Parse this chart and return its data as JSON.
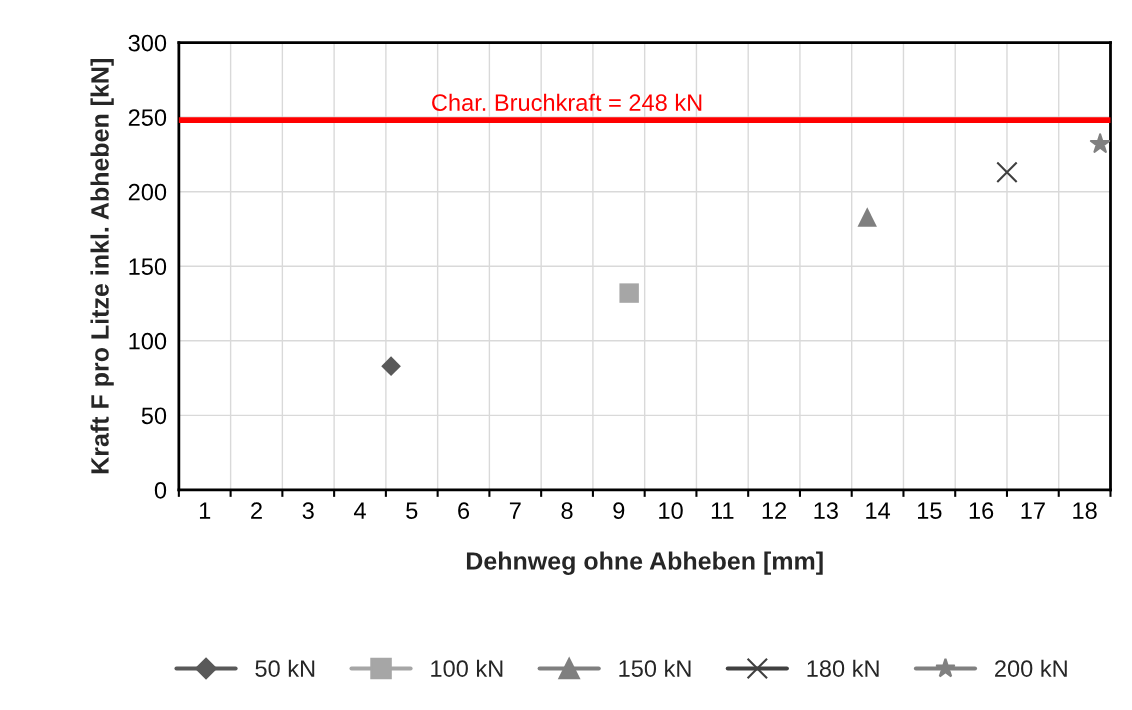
{
  "chart_data": {
    "type": "scatter",
    "xlabel": "Dehnweg ohne Abheben [mm]",
    "ylabel": "Kraft F pro Litze inkl. Abheben [kN]",
    "xlim": [
      0.5,
      18.5
    ],
    "ylim": [
      0,
      300
    ],
    "xticks": [
      {
        "value": 0.5,
        "label": null
      },
      {
        "value": 1,
        "label": "1"
      },
      {
        "value": 1.5,
        "label": null
      },
      {
        "value": 2,
        "label": "2"
      },
      {
        "value": 2.5,
        "label": null
      },
      {
        "value": 3,
        "label": "3"
      },
      {
        "value": 3.5,
        "label": null
      },
      {
        "value": 4,
        "label": "4"
      },
      {
        "value": 4.5,
        "label": null
      },
      {
        "value": 5,
        "label": "5"
      },
      {
        "value": 5.5,
        "label": null
      },
      {
        "value": 6,
        "label": "6"
      },
      {
        "value": 6.5,
        "label": null
      },
      {
        "value": 7,
        "label": "7"
      },
      {
        "value": 7.5,
        "label": null
      },
      {
        "value": 8,
        "label": "8"
      },
      {
        "value": 8.5,
        "label": null
      },
      {
        "value": 9,
        "label": "9"
      },
      {
        "value": 9.5,
        "label": null
      },
      {
        "value": 10,
        "label": "10"
      },
      {
        "value": 10.5,
        "label": null
      },
      {
        "value": 11,
        "label": "11"
      },
      {
        "value": 11.5,
        "label": null
      },
      {
        "value": 12,
        "label": "12"
      },
      {
        "value": 12.5,
        "label": null
      },
      {
        "value": 13,
        "label": "13"
      },
      {
        "value": 13.5,
        "label": null
      },
      {
        "value": 14,
        "label": "14"
      },
      {
        "value": 14.5,
        "label": null
      },
      {
        "value": 15,
        "label": "15"
      },
      {
        "value": 15.5,
        "label": null
      },
      {
        "value": 16,
        "label": "16"
      },
      {
        "value": 16.5,
        "label": null
      },
      {
        "value": 17,
        "label": "17"
      },
      {
        "value": 17.5,
        "label": null
      },
      {
        "value": 18,
        "label": "18"
      },
      {
        "value": 18.5,
        "label": null
      }
    ],
    "yticks": [
      0,
      50,
      100,
      150,
      200,
      250,
      300
    ],
    "grid": true,
    "legend": "bottom",
    "series": [
      {
        "name": "50 kN",
        "color": "#595959",
        "marker": "diamond",
        "x": [
          4.6
        ],
        "values": [
          83
        ]
      },
      {
        "name": "100 kN",
        "color": "#a6a6a6",
        "marker": "square",
        "x": [
          9.2
        ],
        "values": [
          132
        ]
      },
      {
        "name": "150 kN",
        "color": "#7f7f7f",
        "marker": "triangle",
        "x": [
          13.8
        ],
        "values": [
          183
        ]
      },
      {
        "name": "180 kN",
        "color": "#404040",
        "marker": "cross",
        "x": [
          16.5
        ],
        "values": [
          213
        ]
      },
      {
        "name": "200 kN",
        "color": "#808080",
        "marker": "star",
        "x": [
          18.3
        ],
        "values": [
          232
        ]
      }
    ],
    "ref_lines": [
      {
        "axis": "y",
        "value": 248,
        "label": "Char. Bruchkraft = 248 kN",
        "color": "#ff0000"
      }
    ]
  }
}
